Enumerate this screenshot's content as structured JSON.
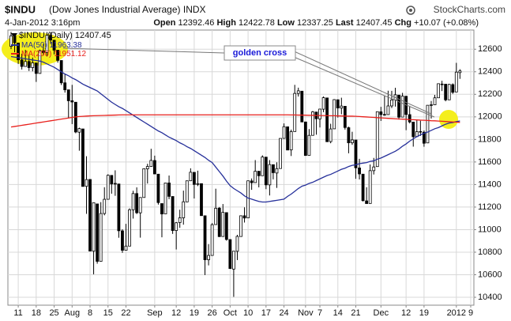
{
  "header": {
    "symbol": "$INDU",
    "name": "(Dow Jones Industrial Average)",
    "exchange": "INDX",
    "source": "StockCharts.com",
    "timestamp": "4-Jan-2012 3:16pm",
    "labels": {
      "open": "Open",
      "high": "High",
      "low": "Low",
      "last": "Last",
      "change": "Chg"
    },
    "change": "+10.07 (+0.08%)"
  },
  "chart_data": {
    "type": "candlestick",
    "legend_label": "$INDU (Daily)",
    "color": "#000000",
    "up_fill": "#ffffff",
    "down_fill": "#000000",
    "categories": [
      null,
      null,
      "11",
      null,
      null,
      null,
      null,
      "18",
      null,
      null,
      null,
      null,
      "25",
      null,
      null,
      null,
      null,
      "Aug",
      null,
      null,
      null,
      null,
      "8",
      null,
      null,
      null,
      null,
      "15",
      null,
      null,
      null,
      null,
      "22",
      null,
      null,
      null,
      null,
      null,
      null,
      null,
      "Sep",
      null,
      null,
      null,
      null,
      null,
      "12",
      null,
      null,
      null,
      null,
      "19",
      null,
      null,
      null,
      null,
      "26",
      null,
      null,
      null,
      null,
      "Oct",
      null,
      null,
      null,
      null,
      "10",
      null,
      null,
      null,
      null,
      "17",
      null,
      null,
      null,
      null,
      "24",
      null,
      null,
      null,
      null,
      null,
      "Nov",
      null,
      null,
      null,
      "7",
      null,
      null,
      null,
      null,
      "14",
      null,
      null,
      null,
      null,
      "21",
      null,
      null,
      null,
      null,
      null,
      null,
      "Dec",
      null,
      null,
      null,
      null,
      null,
      null,
      "12",
      null,
      null,
      null,
      null,
      "19",
      null,
      null,
      null,
      null,
      null,
      null,
      null,
      null,
      "2012",
      null,
      null,
      null,
      "9"
    ],
    "open": [
      12626,
      12717,
      12655,
      12505,
      12447,
      12491,
      12437,
      12478,
      12385,
      12587,
      12571,
      12723,
      12680,
      12591,
      12500,
      12302,
      12240,
      12143,
      12130,
      11864,
      11893,
      11384,
      11445,
      10809,
      11228,
      10719,
      11143,
      11269,
      11481,
      11404,
      11405,
      10989,
      10817,
      10854,
      11176,
      11320,
      11149,
      11285,
      11539,
      11560,
      11613,
      11492,
      11231,
      11140,
      11414,
      11294,
      10992,
      11063,
      11105,
      11246,
      11433,
      11508,
      11401,
      11408,
      11123,
      10733,
      10771,
      11045,
      11191,
      10939,
      11151,
      10912,
      10650,
      10808,
      10939,
      11123,
      11104,
      11432,
      11417,
      11518,
      11478,
      11643,
      11397,
      11576,
      11502,
      11542,
      11809,
      11912,
      11707,
      11870,
      12208,
      12228,
      11955,
      11659,
      11836,
      12043,
      11982,
      12068,
      12168,
      11781,
      11894,
      12152,
      12078,
      12094,
      11904,
      11770,
      11795,
      11547,
      11492,
      11255,
      11232,
      11523,
      11559,
      12045,
      12021,
      12020,
      12097,
      12149,
      12193,
      11998,
      12183,
      12020,
      11954,
      11825,
      11870,
      11864,
      11769,
      12102,
      12107,
      12169,
      12291,
      12290,
      12151,
      12286,
      12221,
      12392.46,
      null,
      null,
      null
    ],
    "high": [
      12753,
      12717,
      12655,
      12560,
      12594,
      12555,
      12526,
      12478,
      12596,
      12646,
      12752,
      12750,
      12680,
      12592,
      12500,
      12383,
      12240,
      12284,
      12130,
      11904,
      11893,
      11651,
      11445,
      11240,
      11228,
      11244,
      11376,
      11490,
      11481,
      11526,
      11405,
      11003,
      11051,
      11189,
      11345,
      11375,
      11285,
      11540,
      11584,
      11717,
      11656,
      11492,
      11231,
      11414,
      11480,
      11294,
      11067,
      11177,
      11346,
      11433,
      11544,
      11508,
      11523,
      11408,
      11123,
      10872,
      11058,
      11363,
      11200,
      11227,
      11151,
      10913,
      10810,
      10954,
      11124,
      11198,
      11433,
      11454,
      11617,
      11518,
      11659,
      11643,
      11617,
      11576,
      11597,
      11809,
      11942,
      11912,
      11887,
      12284,
      12259,
      12228,
      11955,
      11892,
      12052,
      12043,
      12072,
      12181,
      12168,
      11939,
      12157,
      12152,
      12170,
      12094,
      11913,
      11868,
      11795,
      11628,
      11492,
      11376,
      11578,
      11636,
      12046,
      12089,
      12185,
      12232,
      12231,
      12258,
      12193,
      12213,
      12183,
      12098,
      11954,
      11975,
      11966,
      11879,
      12103,
      12141,
      12195,
      12297,
      12320,
      12291,
      12293,
      12297,
      12479,
      12422.78,
      null,
      null,
      null
    ],
    "low": [
      12601,
      12573,
      12469,
      12420,
      12447,
      12407,
      12404,
      12310,
      12385,
      12547,
      12536,
      12646,
      12554,
      12481,
      12283,
      12215,
      11987,
      11936,
      11855,
      11700,
      11383,
      11140,
      10809,
      10604,
      10698,
      10719,
      11127,
      11269,
      11319,
      11300,
      10928,
      10794,
      10817,
      10854,
      11098,
      11138,
      10929,
      11285,
      11409,
      11560,
      11493,
      11222,
      10932,
      11140,
      11270,
      10962,
      10824,
      11016,
      11044,
      11244,
      11432,
      11276,
      11386,
      11123,
      10597,
      10683,
      10771,
      11045,
      10935,
      10939,
      10902,
      10652,
      10404,
      10730,
      10937,
      11063,
      11104,
      11353,
      11417,
      11375,
      11478,
      11359,
      11303,
      11446,
      11370,
      11542,
      11809,
      11705,
      11653,
      11870,
      12180,
      11955,
      11654,
      11659,
      11834,
      11842,
      11906,
      12041,
      11777,
      11766,
      11894,
      11994,
      12023,
      11887,
      11677,
      11752,
      11451,
      11445,
      11250,
      11231,
      11232,
      11489,
      11559,
      11964,
      12010,
      12020,
      12078,
      12091,
      11976,
      11997,
      11882,
      11942,
      11736,
      11825,
      11831,
      11735,
      11769,
      11985,
      12107,
      12169,
      12229,
      12138,
      12151,
      12204,
      12221,
      12337.25,
      null,
      null,
      null
    ],
    "close": [
      12719,
      12657,
      12506,
      12447,
      12491,
      12437,
      12479,
      12385,
      12587,
      12571,
      12724,
      12681,
      12592,
      12501,
      12302,
      12240,
      12143,
      12132,
      11866,
      11896,
      11383,
      11444,
      10810,
      11239,
      10719,
      11143,
      11269,
      11482,
      11405,
      11410,
      10990,
      10817,
      10854,
      11176,
      11320,
      11150,
      11285,
      11540,
      11560,
      11614,
      11494,
      11240,
      11139,
      11414,
      11295,
      10992,
      11061,
      11105,
      11247,
      11433,
      11509,
      11401,
      11408,
      11124,
      10733,
      10771,
      11044,
      11190,
      10938,
      11153,
      10913,
      10655,
      10809,
      10940,
      11123,
      11103,
      11433,
      11416,
      11518,
      11478,
      11644,
      11397,
      11577,
      11505,
      11541,
      11809,
      11913,
      11706,
      11869,
      12208,
      12231,
      11955,
      11658,
      11836,
      12044,
      11983,
      12069,
      12170,
      11780,
      11893,
      12153,
      12079,
      12096,
      11906,
      11770,
      11796,
      11548,
      11494,
      11257,
      11231,
      11523,
      11556,
      12046,
      12020,
      12019,
      12097,
      12150,
      12196,
      11997,
      12184,
      12021,
      11955,
      11824,
      11869,
      11866,
      11766,
      12103,
      12107,
      12169,
      12294,
      12291,
      12151,
      12288,
      12218,
      12397,
      12407.45,
      null,
      null,
      null
    ],
    "series": [
      {
        "name": "MA(50)",
        "color": "#26309a",
        "values": [
          12535,
          12530,
          12525,
          12520,
          12515,
          12510,
          12505,
          12500,
          12495,
          12485,
          12470,
          12455,
          12440,
          12420,
          12400,
          12380,
          12365,
          12345,
          12330,
          12310,
          12290,
          12275,
          12260,
          12245,
          12230,
          12205,
          12180,
          12155,
          12130,
          12110,
          12090,
          12075,
          12055,
          12035,
          12015,
          11995,
          11975,
          11955,
          11935,
          11915,
          11895,
          11875,
          11860,
          11840,
          11820,
          11805,
          11790,
          11770,
          11755,
          11735,
          11720,
          11700,
          11680,
          11660,
          11640,
          11615,
          11595,
          11555,
          11515,
          11475,
          11430,
          11390,
          11365,
          11345,
          11325,
          11300,
          11280,
          11270,
          11260,
          11250,
          11245,
          11245,
          11250,
          11255,
          11260,
          11265,
          11270,
          11295,
          11315,
          11340,
          11365,
          11385,
          11395,
          11410,
          11420,
          11435,
          11450,
          11465,
          11480,
          11490,
          11505,
          11520,
          11535,
          11545,
          11560,
          11570,
          11575,
          11585,
          11590,
          11595,
          11605,
          11610,
          11625,
          11635,
          11650,
          11665,
          11680,
          11695,
          11715,
          11740,
          11760,
          11785,
          11805,
          11825,
          11840,
          11855,
          11865,
          11880,
          11895,
          11905,
          11920,
          11935,
          11945,
          11950,
          11958,
          11963.38,
          null,
          null,
          null
        ]
      },
      {
        "name": "MA(200)",
        "color": "#e8201c",
        "values": [
          11910,
          11915,
          11920,
          11925,
          11930,
          11935,
          11940,
          11945,
          11950,
          11955,
          11960,
          11965,
          11970,
          11975,
          11980,
          11985,
          11990,
          11995,
          12000,
          12003,
          12005,
          12007,
          12009,
          12010,
          12011,
          12012,
          12013,
          12014,
          12015,
          12016,
          12017,
          12018,
          12018,
          12018,
          12018,
          12018,
          12018,
          12018,
          12018,
          12018,
          12018,
          12018,
          12018,
          12018,
          12018,
          12018,
          12018,
          12018,
          12018,
          12018,
          12018,
          12018,
          12018,
          12018,
          12018,
          12018,
          12018,
          12018,
          12018,
          12018,
          12018,
          12018,
          12018,
          12018,
          12018,
          12018,
          12018,
          12018,
          12018,
          12018,
          12018,
          12018,
          12018,
          12018,
          12018,
          12018,
          12018,
          12018,
          12017,
          12017,
          12016,
          12016,
          12015,
          12014,
          12014,
          12013,
          12012,
          12012,
          12011,
          12010,
          12010,
          12009,
          12008,
          12007,
          12006,
          12006,
          12005,
          12003,
          12001,
          11999,
          11997,
          11995,
          11993,
          11991,
          11989,
          11987,
          11985,
          11983,
          11981,
          11980,
          11978,
          11976,
          11975,
          11973,
          11971,
          11970,
          11968,
          11966,
          11965,
          11963,
          11961,
          11959,
          11957,
          11955,
          11953,
          11951.12,
          null,
          null,
          null
        ]
      }
    ],
    "ylim": [
      10330,
      12770
    ],
    "yticks": [
      10400,
      10600,
      10800,
      11000,
      11200,
      11400,
      11600,
      11800,
      12000,
      12200,
      12400,
      12600
    ],
    "grid": true,
    "annotations": [
      {
        "text": "golden cross"
      }
    ]
  }
}
